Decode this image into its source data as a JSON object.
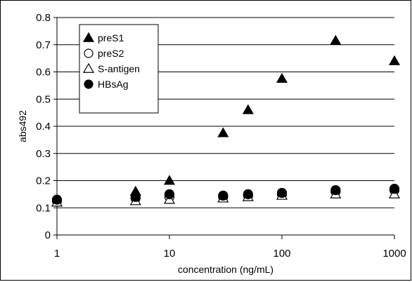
{
  "chart_data": {
    "type": "scatter",
    "title": "",
    "xlabel": "concentration (ng/mL)",
    "ylabel": "abs492",
    "x_scale": "log",
    "xlim": [
      1,
      1000
    ],
    "ylim": [
      0,
      0.8
    ],
    "x_ticks": [
      "1",
      "10",
      "100",
      "1000"
    ],
    "y_ticks": [
      "0",
      "0.1",
      "0.2",
      "0.3",
      "0.4",
      "0.5",
      "0.6",
      "0.7",
      "0.8"
    ],
    "grid": "horizontal",
    "legend_position": "top-left",
    "series": [
      {
        "name": "preS1",
        "marker": "filled-triangle",
        "x": [
          5,
          10,
          30,
          50,
          100,
          300,
          1000
        ],
        "y": [
          0.16,
          0.2,
          0.375,
          0.46,
          0.575,
          0.715,
          0.64
        ]
      },
      {
        "name": "preS2",
        "marker": "open-circle",
        "x": [
          1,
          5,
          10,
          30,
          50,
          100,
          300,
          1000
        ],
        "y": [
          0.125,
          0.135,
          0.14,
          0.14,
          0.145,
          0.15,
          0.16,
          0.165
        ]
      },
      {
        "name": "S-antigen",
        "marker": "open-triangle",
        "x": [
          1,
          5,
          10,
          30,
          50,
          100,
          300,
          1000
        ],
        "y": [
          0.12,
          0.125,
          0.13,
          0.135,
          0.14,
          0.145,
          0.15,
          0.15
        ]
      },
      {
        "name": "HBsAg",
        "marker": "filled-circle",
        "x": [
          1,
          5,
          10,
          30,
          50,
          100,
          300,
          1000
        ],
        "y": [
          0.13,
          0.14,
          0.15,
          0.145,
          0.15,
          0.155,
          0.165,
          0.17
        ]
      }
    ]
  }
}
